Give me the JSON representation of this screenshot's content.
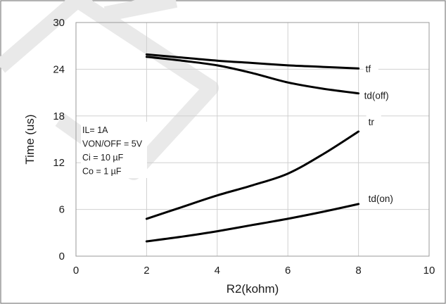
{
  "chart_data": {
    "type": "line",
    "xlabel": "R2(kohm)",
    "ylabel": "Time (us)",
    "xlim": [
      0,
      10
    ],
    "ylim": [
      0,
      30
    ],
    "x_ticks": [
      "0",
      "2",
      "4",
      "6",
      "8",
      "10"
    ],
    "y_ticks": [
      "0",
      "6",
      "12",
      "18",
      "24",
      "30"
    ],
    "grid": true,
    "legend": "inline labels at line ends",
    "series": [
      {
        "name": "tf",
        "x": [
          2,
          3,
          4,
          5,
          6,
          7,
          8
        ],
        "y": [
          25.9,
          25.5,
          25.1,
          24.8,
          24.5,
          24.3,
          24.1
        ]
      },
      {
        "name": "td(off)",
        "x": [
          2,
          3,
          4,
          5,
          6,
          7,
          8
        ],
        "y": [
          25.6,
          25.1,
          24.5,
          23.5,
          22.3,
          21.5,
          20.9
        ]
      },
      {
        "name": "tr",
        "x": [
          2,
          3,
          4,
          5,
          6,
          7,
          8
        ],
        "y": [
          4.8,
          6.3,
          7.8,
          9.1,
          10.6,
          13.1,
          16.0
        ]
      },
      {
        "name": "td(on)",
        "x": [
          2,
          3,
          4,
          5,
          6,
          7,
          8
        ],
        "y": [
          1.9,
          2.5,
          3.2,
          4.0,
          4.8,
          5.7,
          6.7
        ]
      }
    ],
    "annotations": [
      "IL= 1A",
      "VON/OFF = 5V",
      "Ci = 10 µF",
      "Co = 1 µF"
    ]
  }
}
